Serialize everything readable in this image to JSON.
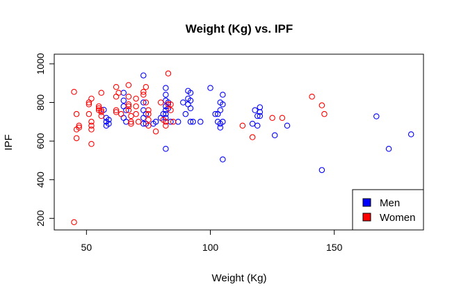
{
  "chart_data": {
    "type": "scatter",
    "title": "Weight (Kg) vs. IPF",
    "xlabel": "Weight (Kg)",
    "ylabel": "IPF",
    "xlim": [
      37,
      186
    ],
    "ylim": [
      140,
      1050
    ],
    "xticks": [
      50,
      100,
      150
    ],
    "yticks": [
      200,
      400,
      600,
      800,
      1000
    ],
    "grid": false,
    "legend": {
      "placement": "bottom-right"
    },
    "series": [
      {
        "name": "Men",
        "color": "#0000ff",
        "marker": "open-circle",
        "points": [
          [
            57,
            762
          ],
          [
            58,
            720
          ],
          [
            58,
            700
          ],
          [
            58,
            680
          ],
          [
            59,
            710
          ],
          [
            59,
            690
          ],
          [
            65,
            850
          ],
          [
            65,
            810
          ],
          [
            65,
            780
          ],
          [
            65,
            720
          ],
          [
            66,
            700
          ],
          [
            66,
            760
          ],
          [
            73,
            940
          ],
          [
            73,
            800
          ],
          [
            73,
            760
          ],
          [
            73,
            720
          ],
          [
            73,
            690
          ],
          [
            74,
            740
          ],
          [
            74,
            690
          ],
          [
            77,
            690
          ],
          [
            78,
            700
          ],
          [
            80,
            720
          ],
          [
            81,
            740
          ],
          [
            82,
            875
          ],
          [
            82,
            840
          ],
          [
            82,
            810
          ],
          [
            82,
            780
          ],
          [
            82,
            760
          ],
          [
            82,
            740
          ],
          [
            82,
            720
          ],
          [
            82,
            700
          ],
          [
            82,
            560
          ],
          [
            83,
            800
          ],
          [
            83,
            770
          ],
          [
            84,
            700
          ],
          [
            87,
            700
          ],
          [
            89,
            800
          ],
          [
            90,
            740
          ],
          [
            91,
            860
          ],
          [
            91,
            820
          ],
          [
            91,
            790
          ],
          [
            92,
            850
          ],
          [
            92,
            810
          ],
          [
            92,
            770
          ],
          [
            92,
            700
          ],
          [
            93,
            700
          ],
          [
            96,
            700
          ],
          [
            100,
            875
          ],
          [
            102,
            740
          ],
          [
            103,
            740
          ],
          [
            103,
            700
          ],
          [
            104,
            690
          ],
          [
            104,
            670
          ],
          [
            104,
            760
          ],
          [
            104,
            800
          ],
          [
            105,
            840
          ],
          [
            105,
            790
          ],
          [
            105,
            700
          ],
          [
            105,
            505
          ],
          [
            117,
            690
          ],
          [
            118,
            760
          ],
          [
            119,
            730
          ],
          [
            119,
            680
          ],
          [
            120,
            775
          ],
          [
            120,
            750
          ],
          [
            120,
            730
          ],
          [
            126,
            630
          ],
          [
            131,
            680
          ],
          [
            145,
            450
          ],
          [
            167,
            728
          ],
          [
            172,
            560
          ],
          [
            181,
            635
          ]
        ]
      },
      {
        "name": "Women",
        "color": "#ff0000",
        "marker": "open-circle",
        "points": [
          [
            45,
            855
          ],
          [
            45,
            180
          ],
          [
            46,
            660
          ],
          [
            46,
            740
          ],
          [
            46,
            615
          ],
          [
            47,
            680
          ],
          [
            47,
            670
          ],
          [
            51,
            790
          ],
          [
            51,
            800
          ],
          [
            51,
            740
          ],
          [
            52,
            820
          ],
          [
            52,
            700
          ],
          [
            52,
            660
          ],
          [
            52,
            585
          ],
          [
            52,
            680
          ],
          [
            55,
            780
          ],
          [
            55,
            760
          ],
          [
            55,
            770
          ],
          [
            56,
            850
          ],
          [
            56,
            760
          ],
          [
            56,
            730
          ],
          [
            56,
            750
          ],
          [
            62,
            880
          ],
          [
            62,
            830
          ],
          [
            62,
            760
          ],
          [
            62,
            750
          ],
          [
            63,
            850
          ],
          [
            64,
            740
          ],
          [
            67,
            890
          ],
          [
            67,
            830
          ],
          [
            67,
            790
          ],
          [
            67,
            780
          ],
          [
            67,
            760
          ],
          [
            68,
            730
          ],
          [
            68,
            700
          ],
          [
            68,
            690
          ],
          [
            70,
            820
          ],
          [
            70,
            780
          ],
          [
            70,
            740
          ],
          [
            71,
            700
          ],
          [
            73,
            855
          ],
          [
            73,
            840
          ],
          [
            74,
            880
          ],
          [
            74,
            800
          ],
          [
            75,
            760
          ],
          [
            75,
            740
          ],
          [
            75,
            710
          ],
          [
            75,
            680
          ],
          [
            78,
            650
          ],
          [
            80,
            800
          ],
          [
            81,
            710
          ],
          [
            82,
            700
          ],
          [
            82,
            680
          ],
          [
            83,
            950
          ],
          [
            83,
            790
          ],
          [
            84,
            790
          ],
          [
            84,
            760
          ],
          [
            85,
            700
          ],
          [
            113,
            680
          ],
          [
            117,
            620
          ],
          [
            125,
            720
          ],
          [
            129,
            720
          ],
          [
            141,
            830
          ],
          [
            145,
            785
          ],
          [
            146,
            740
          ]
        ]
      }
    ]
  }
}
